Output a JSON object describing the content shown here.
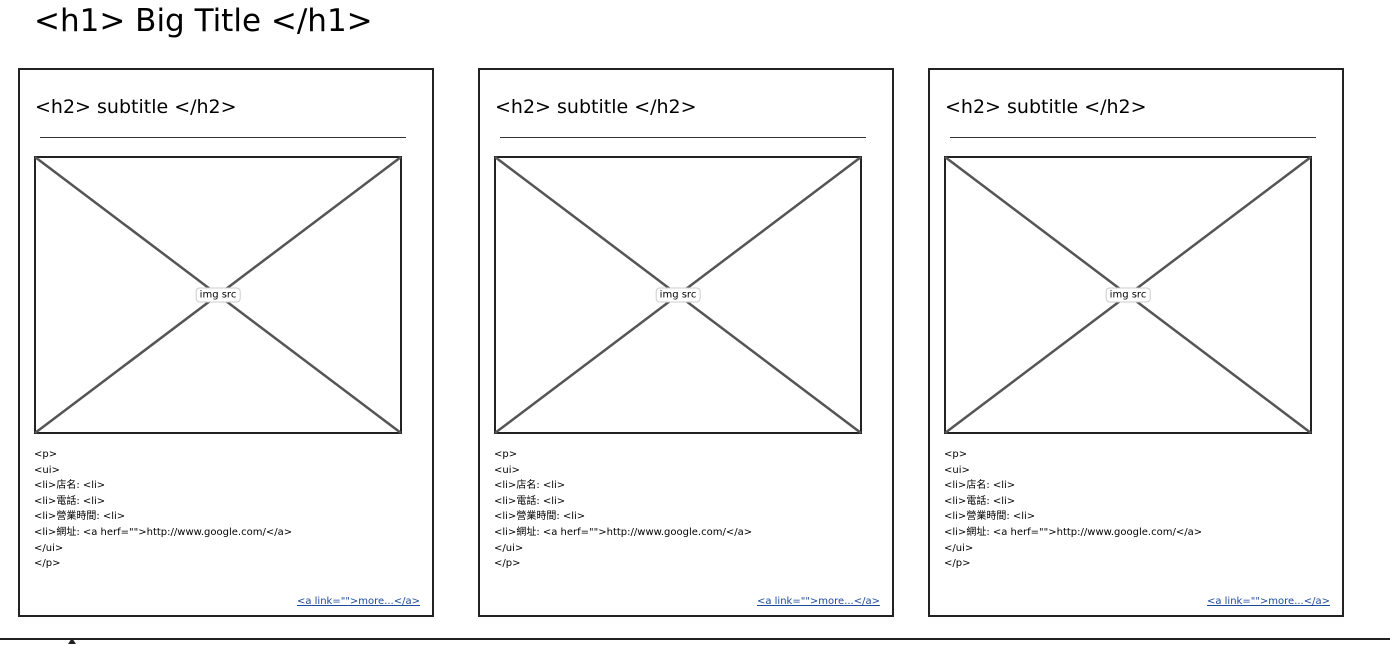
{
  "header": {
    "title": "<h1> Big Title </h1>"
  },
  "cards": [
    {
      "subtitle": "<h2> subtitle </h2>",
      "image_label": "img src",
      "lines": [
        "<p>",
        "<ui>",
        "<li>店名: <li>",
        "<li>電話: <li>",
        "<li>營業時間: <li>",
        "<li>網址: <a herf=\"\">http://www.google.com/</a>",
        "</ui>",
        "</p>"
      ],
      "link": "<a link=\"\">more...</a>"
    },
    {
      "subtitle": "<h2> subtitle </h2>",
      "image_label": "img src",
      "lines": [
        "<p>",
        "<ui>",
        "<li>店名: <li>",
        "<li>電話: <li>",
        "<li>營業時間: <li>",
        "<li>網址: <a herf=\"\">http://www.google.com/</a>",
        "</ui>",
        "</p>"
      ],
      "link": "<a link=\"\">more...</a>"
    },
    {
      "subtitle": "<h2> subtitle </h2>",
      "image_label": "img src",
      "lines": [
        "<p>",
        "<ui>",
        "<li>店名: <li>",
        "<li>電話: <li>",
        "<li>營業時間: <li>",
        "<li>網址: <a herf=\"\">http://www.google.com/</a>",
        "</ui>",
        "</p>"
      ],
      "link": "<a link=\"\">more...</a>"
    }
  ]
}
